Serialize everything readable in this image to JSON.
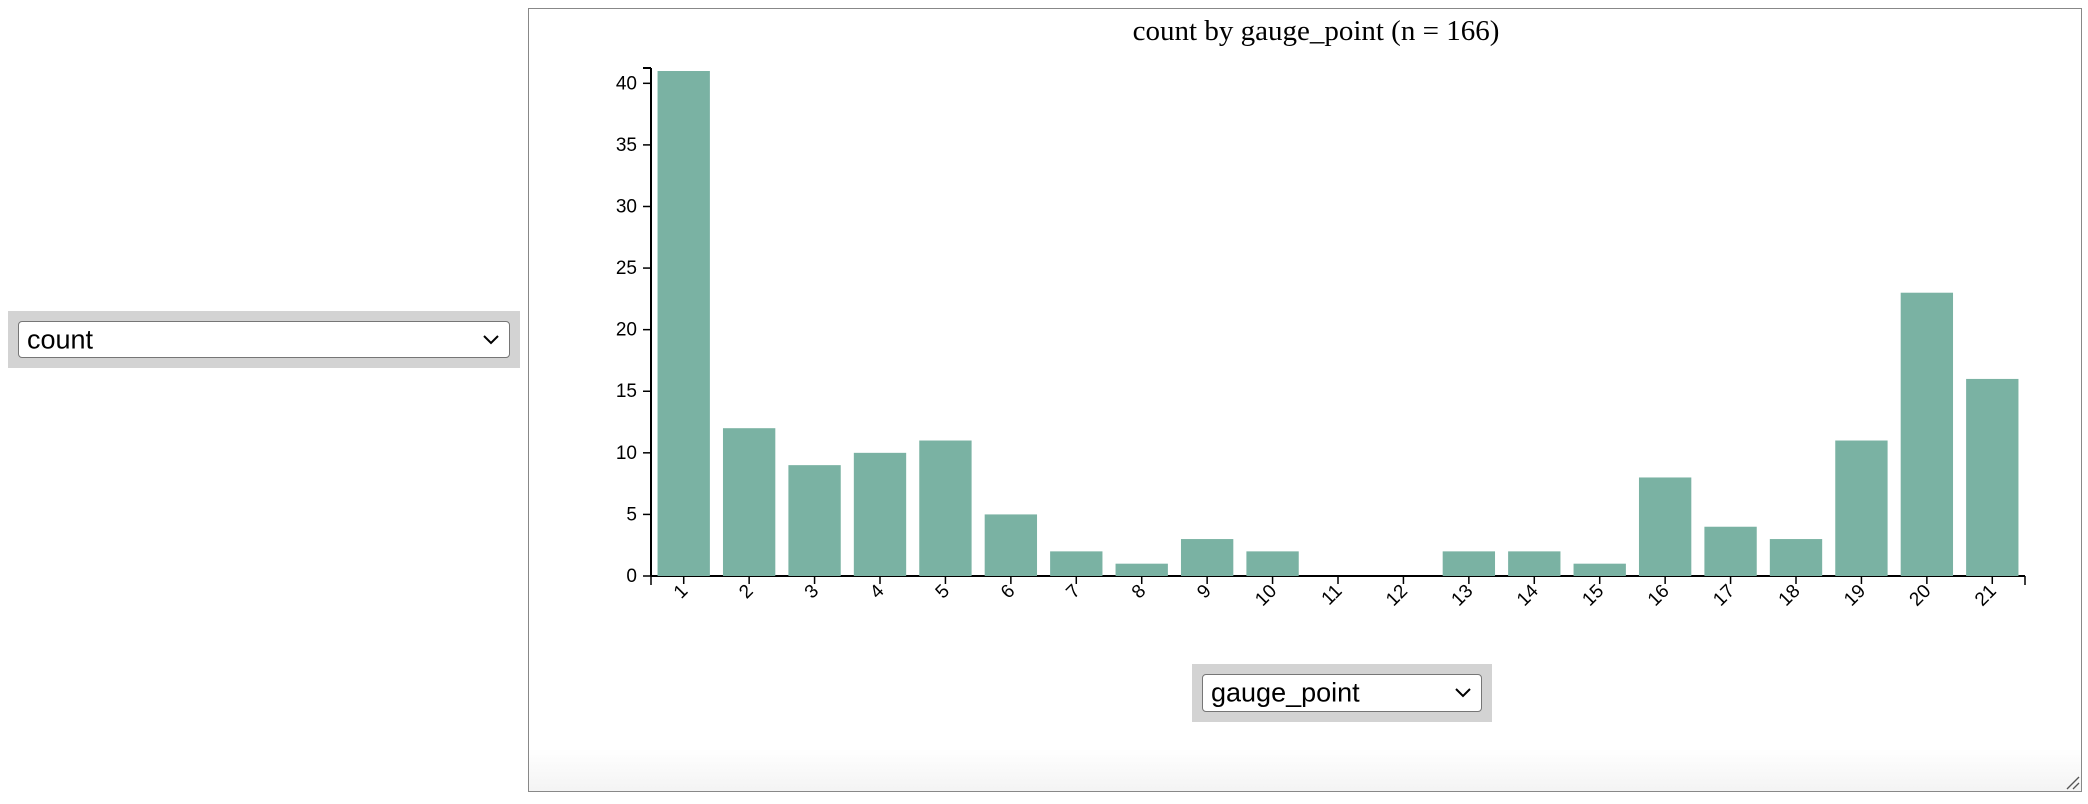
{
  "controls": {
    "y_select": {
      "selected": "count",
      "icon": "chevron-down-icon"
    },
    "x_select": {
      "selected": "gauge_point",
      "icon": "chevron-down-icon"
    }
  },
  "chart_data": {
    "type": "bar",
    "title": "count by gauge_point (n = 166)",
    "xlabel": "",
    "ylabel": "",
    "categories": [
      "1",
      "2",
      "3",
      "4",
      "5",
      "6",
      "7",
      "8",
      "9",
      "10",
      "11",
      "12",
      "13",
      "14",
      "15",
      "16",
      "17",
      "18",
      "19",
      "20",
      "21"
    ],
    "values": [
      41,
      12,
      9,
      10,
      11,
      5,
      2,
      1,
      3,
      2,
      0,
      0,
      2,
      2,
      1,
      8,
      4,
      3,
      11,
      23,
      16
    ],
    "ylim": [
      0,
      41
    ],
    "yticks": [
      0,
      5,
      10,
      15,
      20,
      25,
      30,
      35,
      40
    ],
    "grid": false,
    "bar_color": "#7ab2a3"
  }
}
